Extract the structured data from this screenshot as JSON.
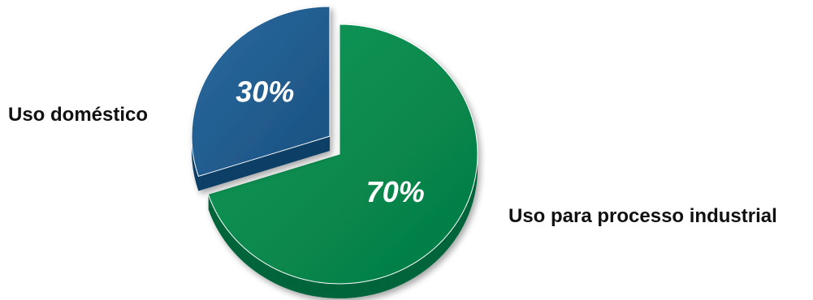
{
  "chart_data": {
    "type": "pie",
    "categories": [
      "Uso doméstico",
      "Uso para processo industrial"
    ],
    "values": [
      30,
      70
    ],
    "value_labels": [
      "30%",
      "70%"
    ],
    "colors": [
      "#1f5b8e",
      "#07894e"
    ],
    "side_colors": [
      "#0f3f66",
      "#05653a"
    ],
    "exploded": "Uso doméstico",
    "style": "3d",
    "title": ""
  }
}
